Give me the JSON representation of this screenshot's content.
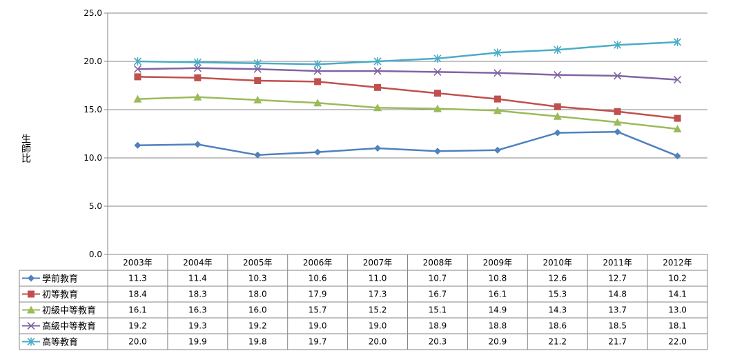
{
  "chart_data": {
    "type": "line",
    "title": "",
    "ylabel": "生師比",
    "ylim": [
      0,
      25
    ],
    "yticks": [
      "0.0",
      "5.0",
      "10.0",
      "15.0",
      "20.0",
      "25.0"
    ],
    "grid": true,
    "legend": "data table below chart",
    "categories": [
      "2003年",
      "2004年",
      "2005年",
      "2006年",
      "2007年",
      "2008年",
      "2009年",
      "2010年",
      "2011年",
      "2012年"
    ],
    "series": [
      {
        "name": "學前教育",
        "color": "#4F81BD",
        "marker": "diamond",
        "values": [
          11.3,
          11.4,
          10.3,
          10.6,
          11.0,
          10.7,
          10.8,
          12.6,
          12.7,
          10.2
        ],
        "labels": [
          "11.3",
          "11.4",
          "10.3",
          "10.6",
          "11.0",
          "10.7",
          "10.8",
          "12.6",
          "12.7",
          "10.2"
        ]
      },
      {
        "name": "初等教育",
        "color": "#C0504D",
        "marker": "square",
        "values": [
          18.4,
          18.3,
          18.0,
          17.9,
          17.3,
          16.7,
          16.1,
          15.3,
          14.8,
          14.1
        ],
        "labels": [
          "18.4",
          "18.3",
          "18.0",
          "17.9",
          "17.3",
          "16.7",
          "16.1",
          "15.3",
          "14.8",
          "14.1"
        ]
      },
      {
        "name": "初級中等教育",
        "color": "#9BBB59",
        "marker": "triangle",
        "values": [
          16.1,
          16.3,
          16.0,
          15.7,
          15.2,
          15.1,
          14.9,
          14.3,
          13.7,
          13.0
        ],
        "labels": [
          "16.1",
          "16.3",
          "16.0",
          "15.7",
          "15.2",
          "15.1",
          "14.9",
          "14.3",
          "13.7",
          "13.0"
        ]
      },
      {
        "name": "高級中等教育",
        "color": "#8064A2",
        "marker": "x",
        "values": [
          19.2,
          19.3,
          19.2,
          19.0,
          19.0,
          18.9,
          18.8,
          18.6,
          18.5,
          18.1
        ],
        "labels": [
          "19.2",
          "19.3",
          "19.2",
          "19.0",
          "19.0",
          "18.9",
          "18.8",
          "18.6",
          "18.5",
          "18.1"
        ]
      },
      {
        "name": "高等教育",
        "color": "#4BACC6",
        "marker": "star",
        "values": [
          20.0,
          19.9,
          19.8,
          19.7,
          20.0,
          20.3,
          20.9,
          21.2,
          21.7,
          22.0
        ],
        "labels": [
          "20.0",
          "19.9",
          "19.8",
          "19.7",
          "20.0",
          "20.3",
          "20.9",
          "21.2",
          "21.7",
          "22.0"
        ]
      }
    ]
  }
}
